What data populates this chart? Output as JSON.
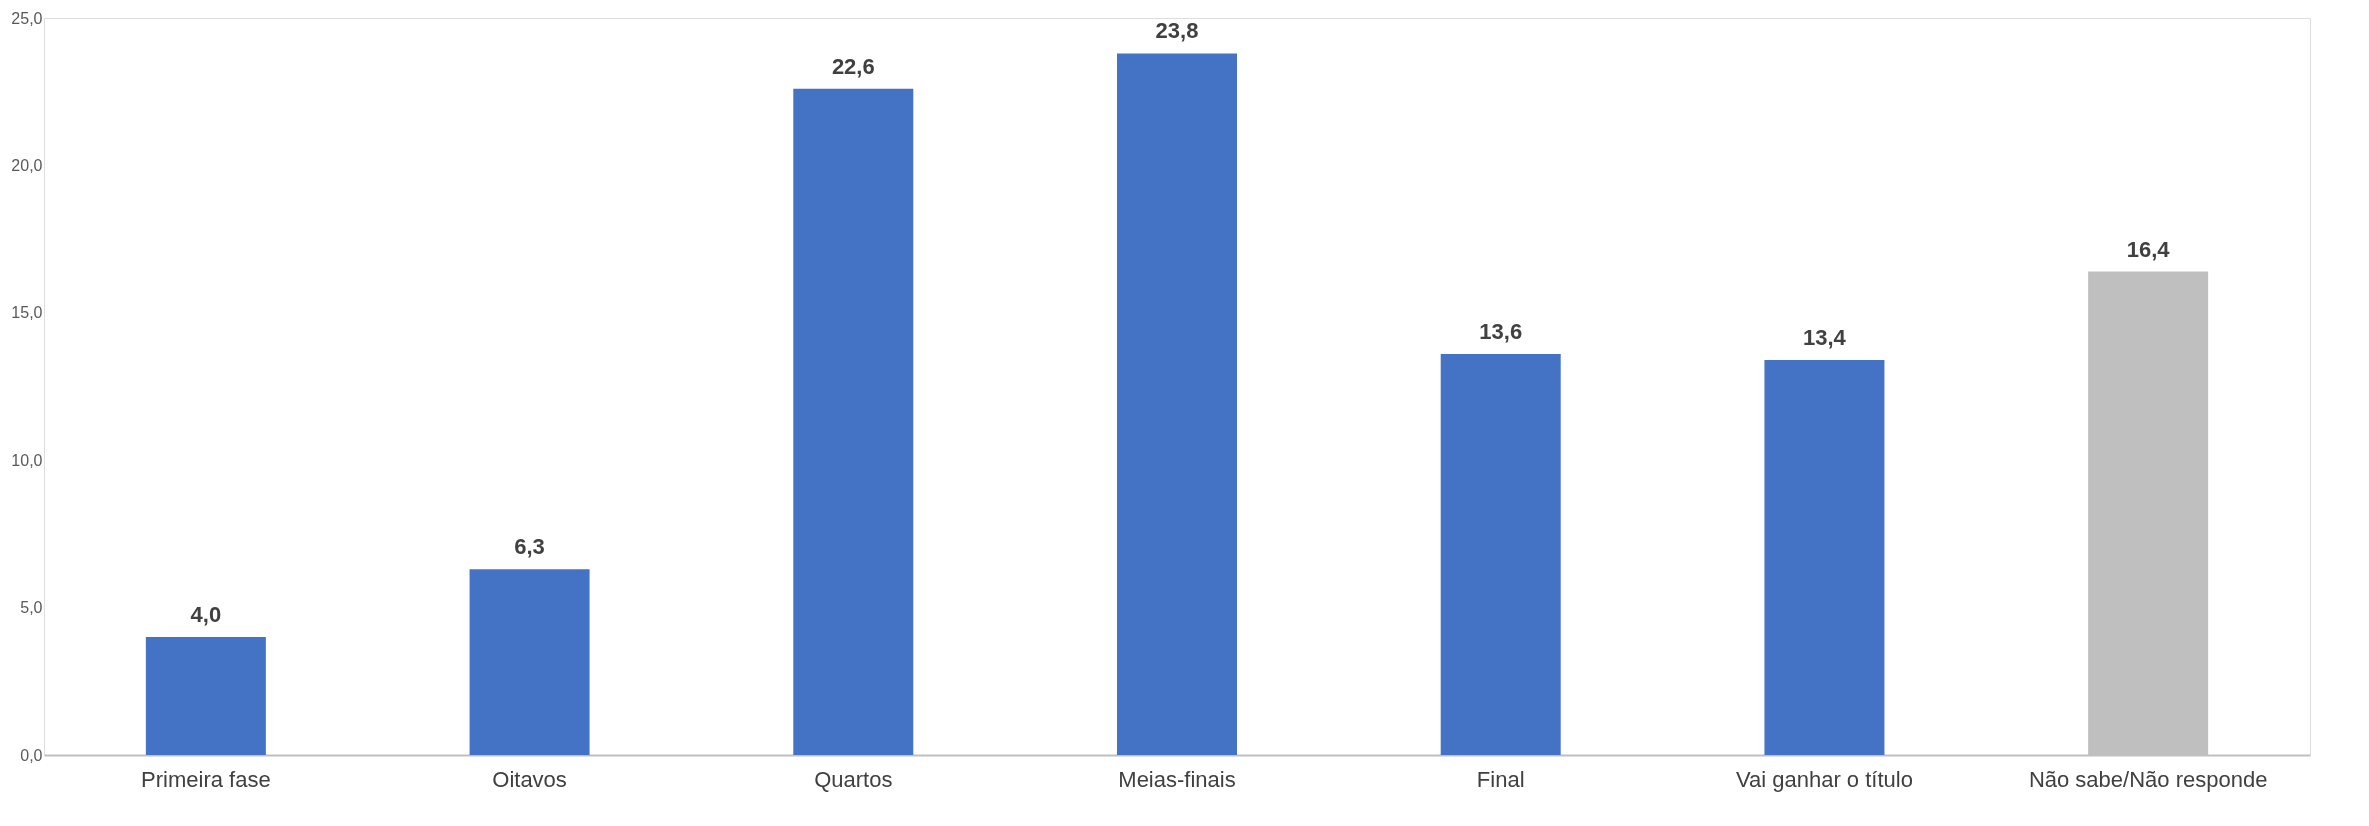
{
  "chart_data": {
    "type": "bar",
    "categories": [
      "Primeira fase",
      "Oitavos",
      "Quartos",
      "Meias-finais",
      "Final",
      "Vai ganhar o título",
      "Não sabe/Não responde"
    ],
    "values": [
      4.0,
      6.3,
      22.6,
      23.8,
      13.6,
      13.4,
      16.4
    ],
    "colors": [
      "#4472c4",
      "#4472c4",
      "#4472c4",
      "#4472c4",
      "#4472c4",
      "#4472c4",
      "#bfbfbf"
    ],
    "value_labels": [
      "4,0",
      "6,3",
      "22,6",
      "23,8",
      "13,6",
      "13,4",
      "16,4"
    ],
    "ylim": [
      0,
      25
    ],
    "yticks": [
      {
        "value": 0,
        "label": "0,0"
      },
      {
        "value": 5,
        "label": "5,0"
      },
      {
        "value": 10,
        "label": "10,0"
      },
      {
        "value": 15,
        "label": "15,0"
      },
      {
        "value": 20,
        "label": "20,0"
      },
      {
        "value": 25,
        "label": "25,0"
      }
    ],
    "grid": false
  }
}
